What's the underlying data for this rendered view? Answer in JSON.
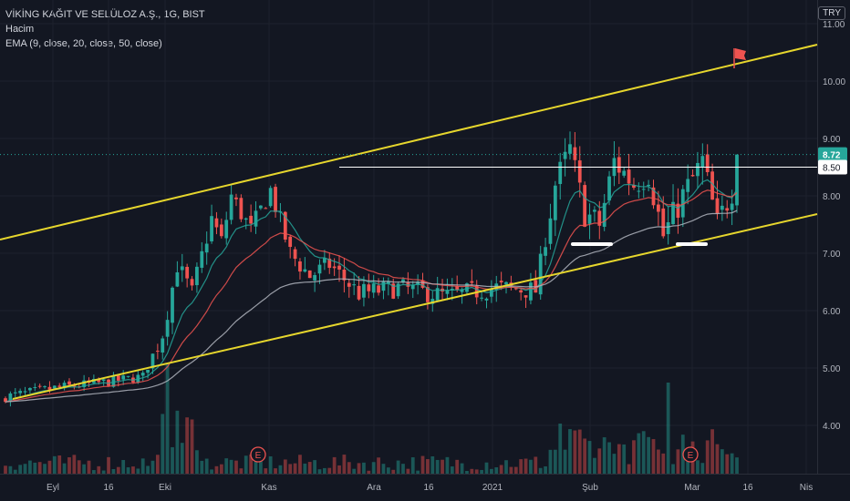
{
  "legend": {
    "symbol": "VİKİNG KAĞIT VE SELÜLOZ A.Ş., 1G, BIST",
    "volume": "Hacim",
    "ema": "EMA (9, close, 20, close, 50, close)"
  },
  "currency": "TRY",
  "chart_data": {
    "type": "candlestick",
    "y_ticks": [
      "11.00",
      "10.00",
      "9.00",
      "8.00",
      "7.00",
      "6.00",
      "5.00",
      "4.00"
    ],
    "y_range": [
      3.4,
      11.3
    ],
    "x_labels": [
      "Eyl",
      "16",
      "Eki",
      "Kas",
      "Ara",
      "16",
      "2021",
      "Şub",
      "Mar",
      "16",
      "Nis"
    ],
    "last_price": "8.72",
    "marked_level": "8.50",
    "earnings_markers": [
      "E",
      "E"
    ],
    "colors": {
      "up": "#26a69a",
      "down": "#ef5350",
      "ema9": "#26a69a",
      "ema20": "#ef5350",
      "ema50": "#b2b5be",
      "channel": "#e6d62d",
      "level": "#ffffff",
      "last": "#26a69a"
    }
  }
}
